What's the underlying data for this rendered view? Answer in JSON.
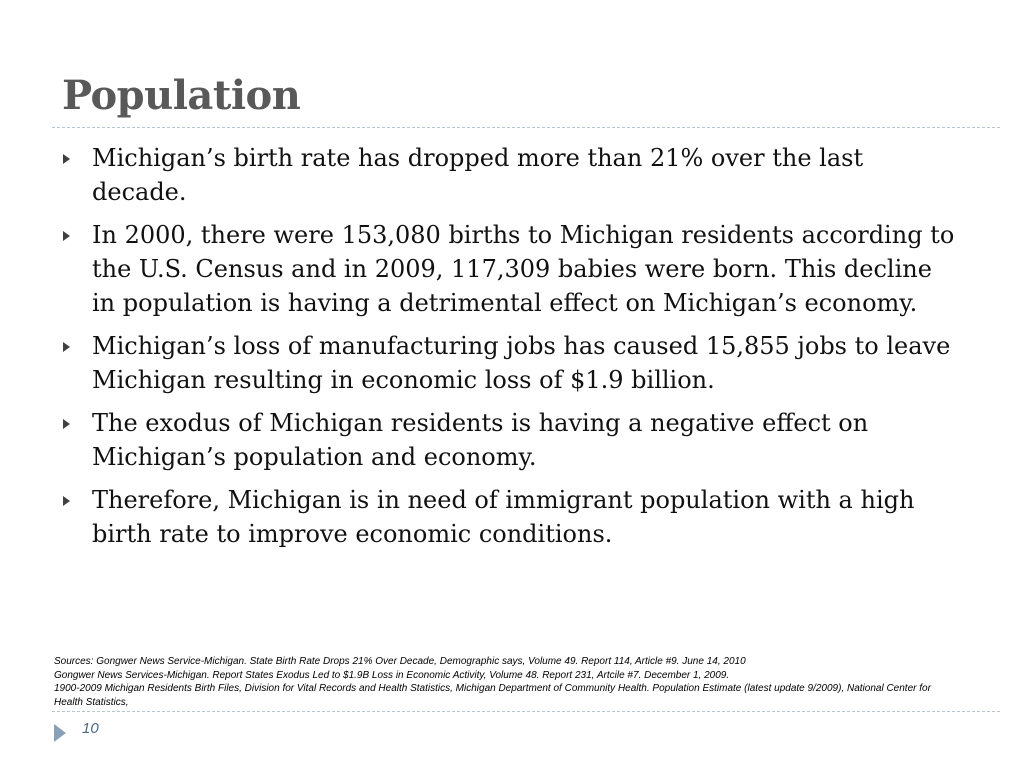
{
  "header": {
    "title": "Population"
  },
  "bullets": [
    "Michigan’s birth rate has dropped more than 21% over the last decade.",
    "In 2000, there were 153,080 births to Michigan residents according to the U.S. Census and in 2009, 117,309 babies were born. This decline in population is having a detrimental effect on Michigan’s economy.",
    "Michigan’s loss of manufacturing jobs has caused 15,855 jobs to leave Michigan resulting in economic loss of $1.9 billion.",
    "The exodus of Michigan residents is having a negative effect on Michigan’s population and economy.",
    "Therefore, Michigan is in need of immigrant population with a high birth rate to improve economic conditions."
  ],
  "sources": [
    "Sources: Gongwer News Service-Michigan. State Birth Rate Drops 21% Over Decade, Demographic says, Volume 49. Report 114, Article #9. June 14, 2010",
    "Gongwer News Services-Michigan. Report States Exodus Led to $1.9B Loss in Economic Activity, Volume 48. Report 231, Artcile #7. December 1, 2009.",
    "1900-2009 Michigan Residents Birth Files, Division for Vital Records and Health Statistics, Michigan Department of Community Health. Population Estimate (latest update 9/2009), National Center for Health Statistics,"
  ],
  "footer": {
    "page_number": "10"
  }
}
